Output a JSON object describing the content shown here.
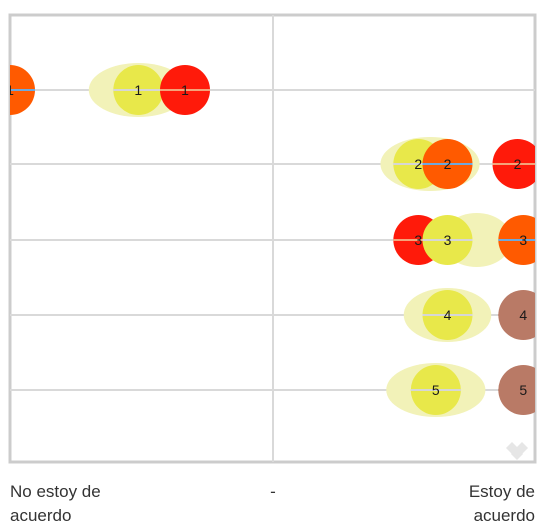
{
  "chart_data": {
    "type": "scatter",
    "x_scale": {
      "left": "No estoy de acuerdo",
      "middle": "-",
      "right": "Estoy de acuerdo"
    },
    "xlim": [
      1,
      10
    ],
    "rows": [
      {
        "row": 1,
        "highlight": {
          "center": 3.2,
          "spread": 0.85
        },
        "points": [
          {
            "label": "1",
            "x": 1.0,
            "color": "#ff5a00",
            "line_color": "#6fa8dc"
          },
          {
            "label": "1",
            "x": 3.2,
            "color": "#e8e84a",
            "line_color": "#d6d6d6"
          },
          {
            "label": "1",
            "x": 4.0,
            "color": "#ff1a0a",
            "line_color": "#f4a37a"
          }
        ]
      },
      {
        "row": 2,
        "highlight": {
          "center": 8.2,
          "spread": 0.85
        },
        "points": [
          {
            "label": "2",
            "x": 8.0,
            "color": "#e8e84a",
            "line_color": "#d6d6d6"
          },
          {
            "label": "2",
            "x": 8.5,
            "color": "#ff5a00",
            "line_color": "#6fa8dc"
          },
          {
            "label": "2",
            "x": 9.7,
            "color": "#ff1a0a",
            "line_color": "#f4a37a"
          }
        ]
      },
      {
        "row": 3,
        "highlight": {
          "center": 9.0,
          "spread": 0.6
        },
        "points": [
          {
            "label": "3",
            "x": 8.0,
            "color": "#ff1a0a",
            "line_color": "#f4a37a"
          },
          {
            "label": "3",
            "x": 8.5,
            "color": "#e8e84a",
            "line_color": "#d6d6d6"
          },
          {
            "label": "3",
            "x": 9.8,
            "color": "#ff5a00",
            "line_color": "#6fa8dc"
          }
        ]
      },
      {
        "row": 4,
        "highlight": {
          "center": 8.5,
          "spread": 0.75
        },
        "points": [
          {
            "label": "4",
            "x": 8.5,
            "color": "#e8e84a",
            "line_color": "#d6d6d6"
          },
          {
            "label": "4",
            "x": 9.8,
            "color": "#b97a66",
            "line_color": "#b97a66"
          }
        ]
      },
      {
        "row": 5,
        "highlight": {
          "center": 8.3,
          "spread": 0.85
        },
        "points": [
          {
            "label": "5",
            "x": 8.3,
            "color": "#e8e84a",
            "line_color": "#d6d6d6"
          },
          {
            "label": "5",
            "x": 9.8,
            "color": "#b97a66",
            "line_color": "#b97a66"
          }
        ]
      }
    ],
    "highlight_color": "#f2f2b8",
    "grid": true
  },
  "watermark": {
    "icon": "diamonds-logo-icon"
  },
  "colors": {
    "grid": "#d9d9d9",
    "frame": "#cccccc",
    "text": "#333333"
  }
}
